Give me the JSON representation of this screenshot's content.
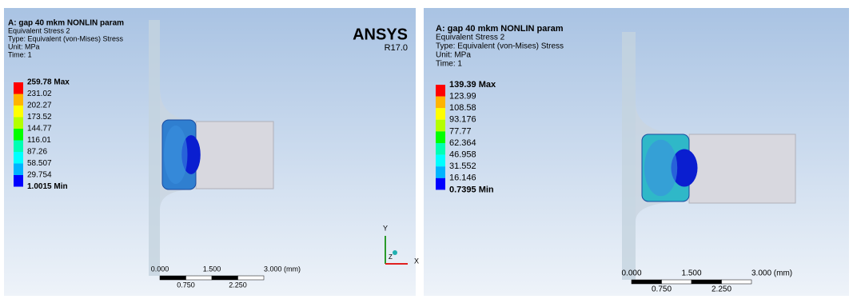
{
  "panels": [
    {
      "header": {
        "title": "A: gap 40 mkm NONLIN param",
        "lines": [
          "Equivalent Stress 2",
          "Type: Equivalent (von-Mises) Stress",
          "Unit: MPa",
          "Time: 1"
        ]
      },
      "legend": {
        "max": "259.78 Max",
        "levels": [
          "231.02",
          "202.27",
          "173.52",
          "144.77",
          "116.01",
          "87.26",
          "58.507",
          "29.754"
        ],
        "min": "1.0015 Min"
      },
      "logo": {
        "name": "ANSYS",
        "version": "R17.0"
      },
      "scale": {
        "top": [
          "0.000",
          "1.500",
          "3.000 (mm)"
        ],
        "bottom": [
          "0.750",
          "2.250"
        ]
      },
      "triad": {
        "y": "Y",
        "x": "X",
        "z": "Z"
      }
    },
    {
      "header": {
        "title": "A: gap 40 mkm NONLIN param",
        "lines": [
          "Equivalent Stress 2",
          "Type: Equivalent (von-Mises) Stress",
          "Unit: MPa",
          "Time: 1"
        ]
      },
      "legend": {
        "max": "139.39 Max",
        "levels": [
          "123.99",
          "108.58",
          "93.176",
          "77.77",
          "62.364",
          "46.958",
          "31.552",
          "16.146"
        ],
        "min": "0.7395 Min"
      },
      "scale": {
        "top": [
          "0.000",
          "1.500",
          "3.000 (mm)"
        ],
        "bottom": [
          "0.750",
          "2.250"
        ]
      }
    }
  ]
}
